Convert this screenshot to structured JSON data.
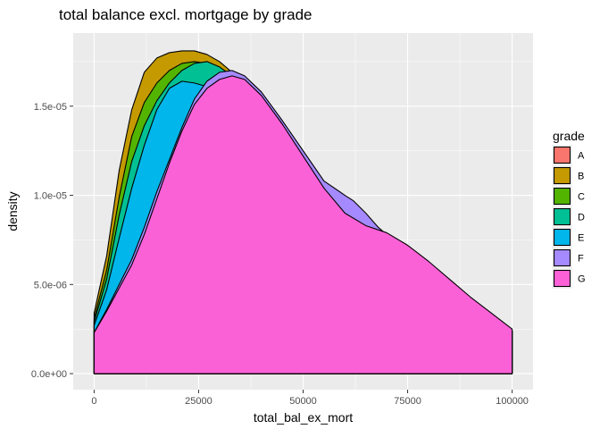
{
  "chart_data": {
    "type": "area",
    "title": "total balance excl. mortgage by grade",
    "xlabel": "total_bal_ex_mort",
    "ylabel": "density",
    "xlim": [
      -5000,
      105000
    ],
    "ylim": [
      -9e-07,
      1.91e-05
    ],
    "x_ticks": [
      0,
      25000,
      50000,
      75000,
      100000
    ],
    "x_tick_labels": [
      "0",
      "25000",
      "50000",
      "75000",
      "100000"
    ],
    "y_ticks": [
      0,
      5e-06,
      1e-05,
      1.5e-05
    ],
    "y_tick_labels": [
      "0.0e+00",
      "5.0e-06",
      "1.0e-05",
      "1.5e-05"
    ],
    "grid": true,
    "stacked": false,
    "legend": {
      "title": "grade",
      "position": "right"
    },
    "series": [
      {
        "name": "A",
        "color": "#F8766D",
        "x": [
          0,
          100000
        ],
        "y": [
          0,
          0
        ]
      },
      {
        "name": "B",
        "color": "#C49A00",
        "x": [
          0,
          3000,
          6000,
          9000,
          12000,
          15000,
          18000,
          21000,
          24000,
          27000,
          30000,
          33000,
          36000,
          40000,
          45000,
          50000,
          55000,
          60000,
          65000,
          70000,
          75000,
          80000,
          85000,
          90000,
          95000,
          100000
        ],
        "y": [
          3.4e-06,
          6.6e-06,
          1.14e-05,
          1.48e-05,
          1.69e-05,
          1.77e-05,
          1.8e-05,
          1.81e-05,
          1.81e-05,
          1.79e-05,
          1.75e-05,
          1.69e-05,
          1.62e-05,
          1.52e-05,
          1.38e-05,
          1.23e-05,
          1.07e-05,
          9.4e-06,
          8.4e-06,
          7.8e-06,
          7.1e-06,
          6.2e-06,
          5.2e-06,
          4.2e-06,
          3.3e-06,
          2.4e-06
        ]
      },
      {
        "name": "C",
        "color": "#53B400",
        "x": [
          0,
          3000,
          6000,
          9000,
          12000,
          15000,
          18000,
          21000,
          24000,
          27000,
          30000,
          33000,
          36000,
          40000,
          45000,
          50000,
          55000,
          60000,
          65000,
          70000,
          75000,
          80000,
          85000,
          90000,
          95000,
          100000
        ],
        "y": [
          3.1e-06,
          5.8e-06,
          9.9e-06,
          1.33e-05,
          1.52e-05,
          1.63e-05,
          1.7e-05,
          1.74e-05,
          1.75e-05,
          1.74e-05,
          1.71e-05,
          1.67e-05,
          1.61e-05,
          1.52e-05,
          1.38e-05,
          1.23e-05,
          1.07e-05,
          9.4e-06,
          8.4e-06,
          7.8e-06,
          7.1e-06,
          6.2e-06,
          5.2e-06,
          4.2e-06,
          3.3e-06,
          2.4e-06
        ]
      },
      {
        "name": "D",
        "color": "#00C094",
        "x": [
          0,
          3000,
          6000,
          9000,
          12000,
          15000,
          18000,
          21000,
          24000,
          27000,
          30000,
          33000,
          36000,
          40000,
          45000,
          50000,
          55000,
          60000,
          65000,
          70000,
          75000,
          80000,
          85000,
          90000,
          95000,
          100000
        ],
        "y": [
          2.9e-06,
          5.3e-06,
          8.9e-06,
          1.19e-05,
          1.39e-05,
          1.53e-05,
          1.63e-05,
          1.7e-05,
          1.74e-05,
          1.75e-05,
          1.72e-05,
          1.67e-05,
          1.61e-05,
          1.52e-05,
          1.38e-05,
          1.23e-05,
          1.07e-05,
          9.4e-06,
          8.4e-06,
          7.8e-06,
          7.1e-06,
          6.2e-06,
          5.2e-06,
          4.2e-06,
          3.3e-06,
          2.4e-06
        ]
      },
      {
        "name": "E",
        "color": "#00B6EB",
        "x": [
          0,
          3000,
          6000,
          9000,
          12000,
          15000,
          18000,
          21000,
          24000,
          27000,
          30000,
          33000,
          36000,
          40000,
          45000,
          50000,
          55000,
          60000,
          65000,
          70000,
          75000,
          80000,
          85000,
          90000,
          95000,
          100000
        ],
        "y": [
          2.7e-06,
          4.7e-06,
          7.6e-06,
          1.04e-05,
          1.28e-05,
          1.48e-05,
          1.6e-05,
          1.64e-05,
          1.63e-05,
          1.61e-05,
          1.63e-05,
          1.64e-05,
          1.61e-05,
          1.52e-05,
          1.38e-05,
          1.23e-05,
          1.07e-05,
          9.4e-06,
          8.4e-06,
          7.8e-06,
          7.1e-06,
          6.2e-06,
          5.2e-06,
          4.2e-06,
          3.3e-06,
          2.4e-06
        ]
      },
      {
        "name": "F",
        "color": "#A58AFF",
        "x": [
          0,
          3000,
          6000,
          9000,
          12000,
          15000,
          18000,
          21000,
          24000,
          27000,
          30000,
          33000,
          36000,
          40000,
          45000,
          50000,
          55000,
          60000,
          62000,
          65000,
          68000,
          70000,
          75000,
          80000,
          85000,
          90000,
          95000,
          100000
        ],
        "y": [
          2.3e-06,
          3.6e-06,
          5e-06,
          6.4e-06,
          8.2e-06,
          1.02e-05,
          1.2e-05,
          1.38e-05,
          1.54e-05,
          1.64e-05,
          1.69e-05,
          1.7e-05,
          1.67e-05,
          1.58e-05,
          1.42e-05,
          1.25e-05,
          1.08e-05,
          1e-05,
          9.7e-06,
          9e-06,
          8.2e-06,
          7.8e-06,
          7.1e-06,
          6.2e-06,
          5.2e-06,
          4.2e-06,
          3.3e-06,
          2.4e-06
        ]
      },
      {
        "name": "G",
        "color": "#FB61D7",
        "x": [
          0,
          3000,
          6000,
          9000,
          12000,
          15000,
          18000,
          21000,
          24000,
          27000,
          30000,
          33000,
          36000,
          40000,
          45000,
          50000,
          55000,
          60000,
          65000,
          70000,
          75000,
          80000,
          85000,
          90000,
          95000,
          100000
        ],
        "y": [
          2.3e-06,
          3.5e-06,
          4.8e-06,
          6.1e-06,
          7.8e-06,
          9.8e-06,
          1.18e-05,
          1.36e-05,
          1.51e-05,
          1.6e-05,
          1.65e-05,
          1.67e-05,
          1.65e-05,
          1.56e-05,
          1.4e-05,
          1.22e-05,
          1.04e-05,
          9e-06,
          8.3e-06,
          7.9e-06,
          7.2e-06,
          6.3e-06,
          5.3e-06,
          4.3e-06,
          3.4e-06,
          2.5e-06
        ]
      }
    ]
  },
  "colors": {
    "panel_background": "#EBEBEB",
    "grid_major": "#FFFFFF",
    "outline": "#000000"
  }
}
